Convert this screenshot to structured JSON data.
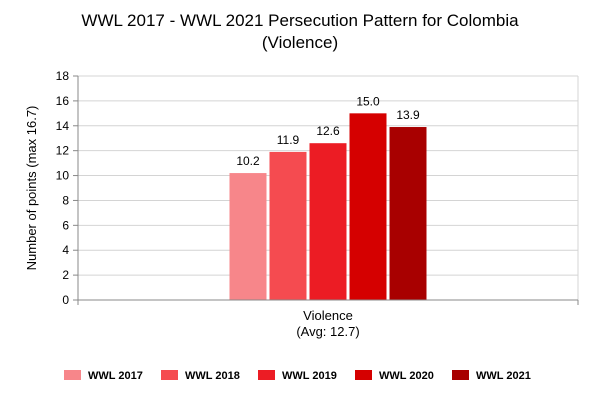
{
  "chart_data": {
    "type": "bar",
    "title": "WWL 2017 - WWL 2021 Persecution Pattern for Colombia",
    "subtitle": "(Violence)",
    "ylabel": "Number of points (max 16.7)",
    "xlabel": "",
    "categories": [
      "Violence"
    ],
    "category_sublabel": "(Avg: 12.7)",
    "ylim": [
      0,
      18
    ],
    "yticks": [
      0,
      2,
      4,
      6,
      8,
      10,
      12,
      14,
      16,
      18
    ],
    "grid": true,
    "legend_position": "bottom",
    "series": [
      {
        "name": "WWL 2017",
        "values": [
          10.2
        ],
        "label": "10.2",
        "color": "#f7868a"
      },
      {
        "name": "WWL 2018",
        "values": [
          11.9
        ],
        "label": "11.9",
        "color": "#f54b50"
      },
      {
        "name": "WWL 2019",
        "values": [
          12.6
        ],
        "label": "12.6",
        "color": "#ec1c24"
      },
      {
        "name": "WWL 2020",
        "values": [
          15.0
        ],
        "label": "15.0",
        "color": "#d50000"
      },
      {
        "name": "WWL 2021",
        "values": [
          13.9
        ],
        "label": "13.9",
        "color": "#a80000"
      }
    ]
  }
}
